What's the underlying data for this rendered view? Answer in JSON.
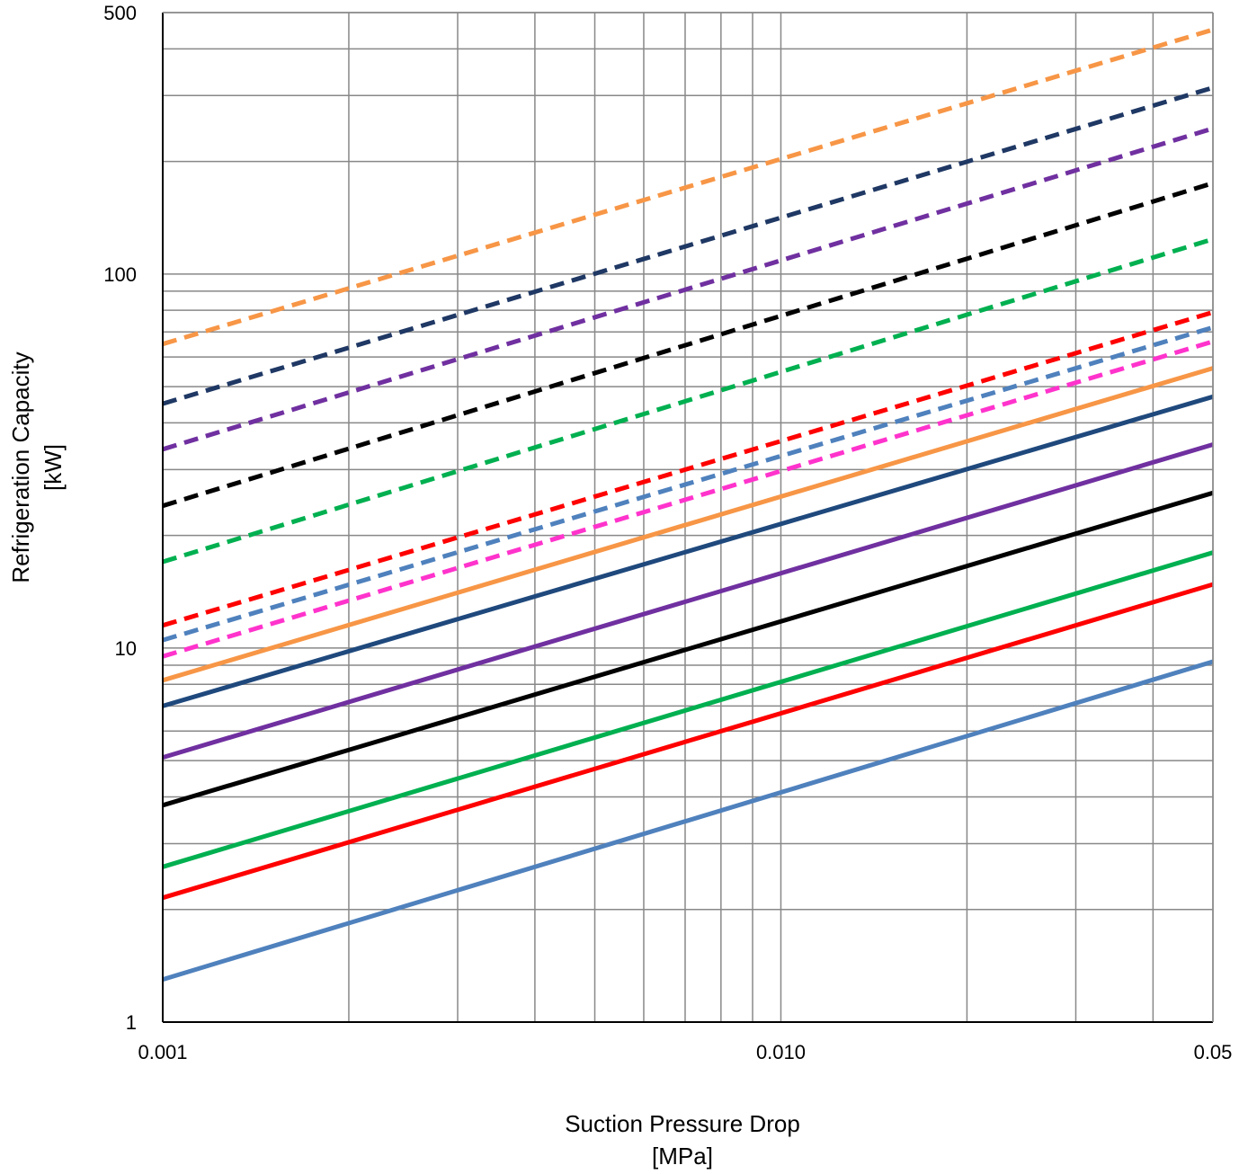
{
  "chart_data": {
    "type": "line",
    "x_scale": "log",
    "y_scale": "log",
    "xlim": [
      0.001,
      0.05
    ],
    "ylim": [
      1,
      500
    ],
    "grid": true,
    "xlabel": [
      "Suction Pressure Drop",
      "[MPa]"
    ],
    "ylabel": [
      "Refrigeration Capacity",
      "[kW]"
    ],
    "x_ticks": [
      {
        "value": 0.001,
        "label": "0.001"
      },
      {
        "value": 0.01,
        "label": "0.010"
      },
      {
        "value": 0.05,
        "label": "0.05"
      }
    ],
    "y_ticks": [
      {
        "value": 1,
        "label": "1"
      },
      {
        "value": 10,
        "label": "10"
      },
      {
        "value": 100,
        "label": "100"
      },
      {
        "value": 500,
        "label": "500"
      }
    ],
    "x_gridlines": [
      0.001,
      0.002,
      0.003,
      0.004,
      0.005,
      0.006,
      0.007,
      0.008,
      0.009,
      0.01,
      0.02,
      0.03,
      0.04,
      0.05
    ],
    "y_gridlines": [
      1,
      2,
      3,
      4,
      5,
      6,
      7,
      8,
      9,
      10,
      20,
      30,
      40,
      50,
      60,
      70,
      80,
      90,
      100,
      200,
      300,
      400,
      500
    ],
    "series": [
      {
        "x": [
          0.001,
          0.05
        ],
        "values": [
          65,
          450
        ],
        "color": "#F79646",
        "style": "dashed"
      },
      {
        "x": [
          0.001,
          0.05
        ],
        "values": [
          45,
          315
        ],
        "color": "#1F3864",
        "style": "dashed"
      },
      {
        "x": [
          0.001,
          0.05
        ],
        "values": [
          34,
          245
        ],
        "color": "#7030A0",
        "style": "dashed"
      },
      {
        "x": [
          0.001,
          0.05
        ],
        "values": [
          24,
          175
        ],
        "color": "#000000",
        "style": "dashed"
      },
      {
        "x": [
          0.001,
          0.05
        ],
        "values": [
          17,
          124
        ],
        "color": "#00B050",
        "style": "dashed"
      },
      {
        "x": [
          0.001,
          0.05
        ],
        "values": [
          11.5,
          79
        ],
        "color": "#FF0000",
        "style": "dashed"
      },
      {
        "x": [
          0.001,
          0.05
        ],
        "values": [
          10.5,
          72
        ],
        "color": "#4F81BD",
        "style": "dashed"
      },
      {
        "x": [
          0.001,
          0.05
        ],
        "values": [
          9.5,
          66
        ],
        "color": "#FF33CC",
        "style": "dashed"
      },
      {
        "x": [
          0.001,
          0.05
        ],
        "values": [
          8.2,
          56
        ],
        "color": "#F79646",
        "style": "solid"
      },
      {
        "x": [
          0.001,
          0.05
        ],
        "values": [
          7,
          47
        ],
        "color": "#1F497D",
        "style": "solid"
      },
      {
        "x": [
          0.001,
          0.05
        ],
        "values": [
          5.1,
          35
        ],
        "color": "#7030A0",
        "style": "solid"
      },
      {
        "x": [
          0.001,
          0.05
        ],
        "values": [
          3.8,
          26
        ],
        "color": "#000000",
        "style": "solid"
      },
      {
        "x": [
          0.001,
          0.05
        ],
        "values": [
          2.6,
          18
        ],
        "color": "#00B050",
        "style": "solid"
      },
      {
        "x": [
          0.001,
          0.05
        ],
        "values": [
          2.15,
          14.8
        ],
        "color": "#FF0000",
        "style": "solid"
      },
      {
        "x": [
          0.001,
          0.05
        ],
        "values": [
          1.3,
          9.2
        ],
        "color": "#4F81BD",
        "style": "solid"
      }
    ]
  }
}
